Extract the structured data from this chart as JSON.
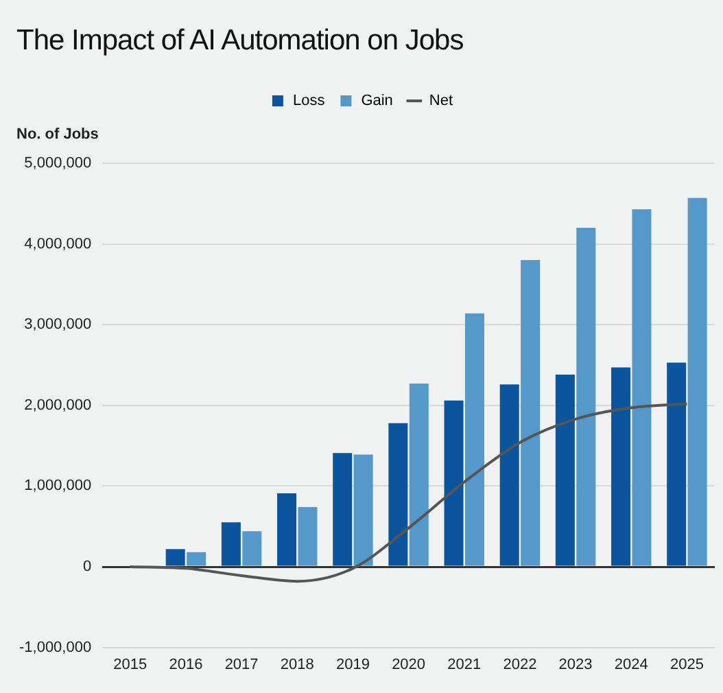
{
  "chart_data": {
    "type": "bar",
    "title": "The Impact of AI Automation on Jobs",
    "ylabel": "No. of Jobs",
    "categories": [
      "2015",
      "2016",
      "2017",
      "2018",
      "2019",
      "2020",
      "2021",
      "2022",
      "2023",
      "2024",
      "2025"
    ],
    "series": [
      {
        "name": "Loss",
        "color": "#0b559f",
        "values": [
          0,
          220000,
          550000,
          910000,
          1410000,
          1780000,
          2060000,
          2260000,
          2380000,
          2470000,
          2530000
        ]
      },
      {
        "name": "Gain",
        "color": "#5499c9",
        "values": [
          0,
          180000,
          440000,
          740000,
          1390000,
          2270000,
          3140000,
          3800000,
          4200000,
          4430000,
          4570000
        ]
      },
      {
        "name": "Net",
        "type": "line",
        "color": "#555555",
        "values": [
          0,
          -20000,
          -110000,
          -180000,
          -20000,
          480000,
          1050000,
          1540000,
          1830000,
          1970000,
          2020000
        ]
      }
    ],
    "ylim": [
      -1000000,
      5000000
    ],
    "yticks": [
      {
        "value": -1000000,
        "label": "-1,000,000"
      },
      {
        "value": 0,
        "label": "0"
      },
      {
        "value": 1000000,
        "label": "1,000,000"
      },
      {
        "value": 2000000,
        "label": "2,000,000"
      },
      {
        "value": 3000000,
        "label": "3,000,000"
      },
      {
        "value": 4000000,
        "label": "4,000,000"
      },
      {
        "value": 5000000,
        "label": "5,000,000"
      }
    ],
    "grid": "y",
    "legend": "top",
    "marker": "none"
  }
}
